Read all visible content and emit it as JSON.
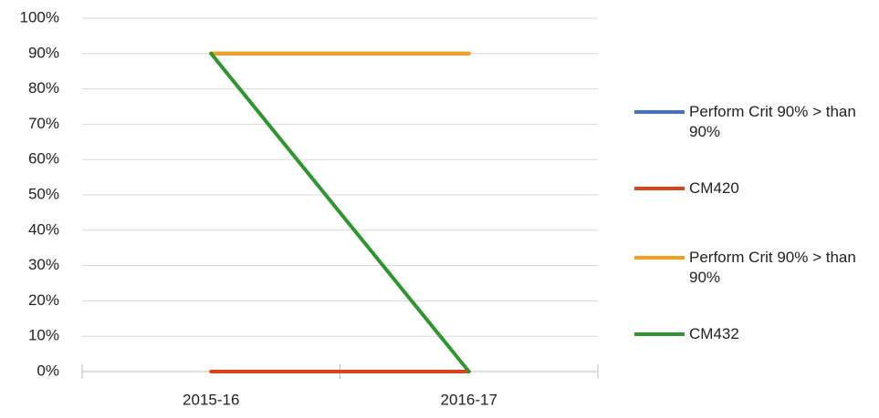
{
  "chart_data": {
    "type": "line",
    "categories": [
      "2015-16",
      "2016-17"
    ],
    "series": [
      {
        "name": "Perform Crit 90% > than 90%",
        "color": "#4472c4",
        "values": [
          90,
          90
        ]
      },
      {
        "name": "CM420",
        "color": "#d9441b",
        "values": [
          0,
          0
        ]
      },
      {
        "name": "Perform Crit 90% > than 90%",
        "color": "#f5a01a",
        "values": [
          90,
          90
        ]
      },
      {
        "name": "CM432",
        "color": "#2e962e",
        "values": [
          90,
          0
        ]
      }
    ],
    "ylim": [
      0,
      100
    ],
    "yticks": [
      {
        "value": 0,
        "label": "0%"
      },
      {
        "value": 10,
        "label": "10%"
      },
      {
        "value": 20,
        "label": "20%"
      },
      {
        "value": 30,
        "label": "30%"
      },
      {
        "value": 40,
        "label": "40%"
      },
      {
        "value": 50,
        "label": "50%"
      },
      {
        "value": 60,
        "label": "60%"
      },
      {
        "value": 70,
        "label": "70%"
      },
      {
        "value": 80,
        "label": "80%"
      },
      {
        "value": 90,
        "label": "90%"
      },
      {
        "value": 100,
        "label": "100%"
      }
    ],
    "grid": true,
    "legend": "right"
  }
}
